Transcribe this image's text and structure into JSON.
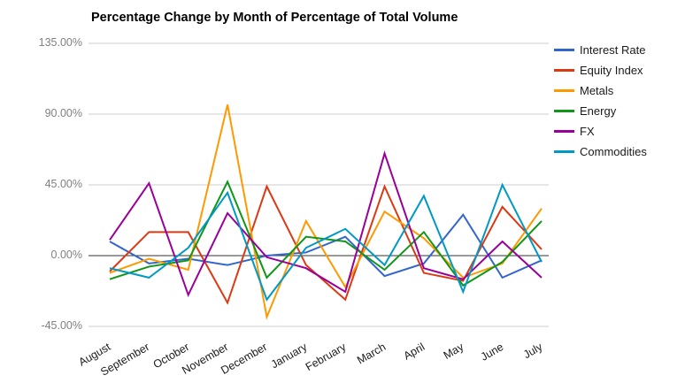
{
  "title": "Percentage Change by Month of Percentage of Total Volume",
  "chart_data": {
    "type": "line",
    "title": "Percentage Change by Month of Percentage of Total Volume",
    "categories": [
      "August",
      "September",
      "October",
      "November",
      "December",
      "January",
      "February",
      "March",
      "April",
      "May",
      "June",
      "July"
    ],
    "series": [
      {
        "name": "Interest Rate",
        "color": "#3366CC",
        "values": [
          9,
          -5,
          -2,
          -6,
          0,
          2,
          12,
          -13,
          -5,
          26,
          -14,
          -3
        ]
      },
      {
        "name": "Equity Index",
        "color": "#DC3912",
        "values": [
          -10,
          15,
          15,
          -30,
          44,
          -6,
          -28,
          44,
          -11,
          -16,
          31,
          4
        ]
      },
      {
        "name": "Metals",
        "color": "#FF9900",
        "values": [
          -11,
          -2,
          -9,
          96,
          -39,
          22,
          -20,
          28,
          11,
          -14,
          -5,
          30
        ]
      },
      {
        "name": "Energy",
        "color": "#109618",
        "values": [
          -15,
          -7,
          -3,
          47,
          -14,
          12,
          9,
          -9,
          15,
          -19,
          -4,
          22
        ]
      },
      {
        "name": "FX",
        "color": "#990099",
        "values": [
          10,
          46,
          -25,
          27,
          -1,
          -8,
          -23,
          65,
          -8,
          -15,
          9,
          -14
        ]
      },
      {
        "name": "Commodities",
        "color": "#0099C6",
        "values": [
          -8,
          -14,
          5,
          40,
          -28,
          5,
          17,
          -6,
          38,
          -23,
          45,
          -4
        ]
      }
    ],
    "y_ticks": [
      {
        "label": "135.00%",
        "value": 135
      },
      {
        "label": "90.00%",
        "value": 90
      },
      {
        "label": "45.00%",
        "value": 45
      },
      {
        "label": "0.00%",
        "value": 0
      },
      {
        "label": "-45.00%",
        "value": -45
      }
    ],
    "ylim": [
      -45,
      135
    ],
    "xlabel": "",
    "ylabel": "",
    "grid": true,
    "legend_position": "right",
    "gridline_color": "#CCCCCC",
    "zero_line_color": "#333333",
    "y_label_color": "#808080",
    "x_label_color": "#1a1a1a",
    "background_color": "#FFFFFF"
  }
}
